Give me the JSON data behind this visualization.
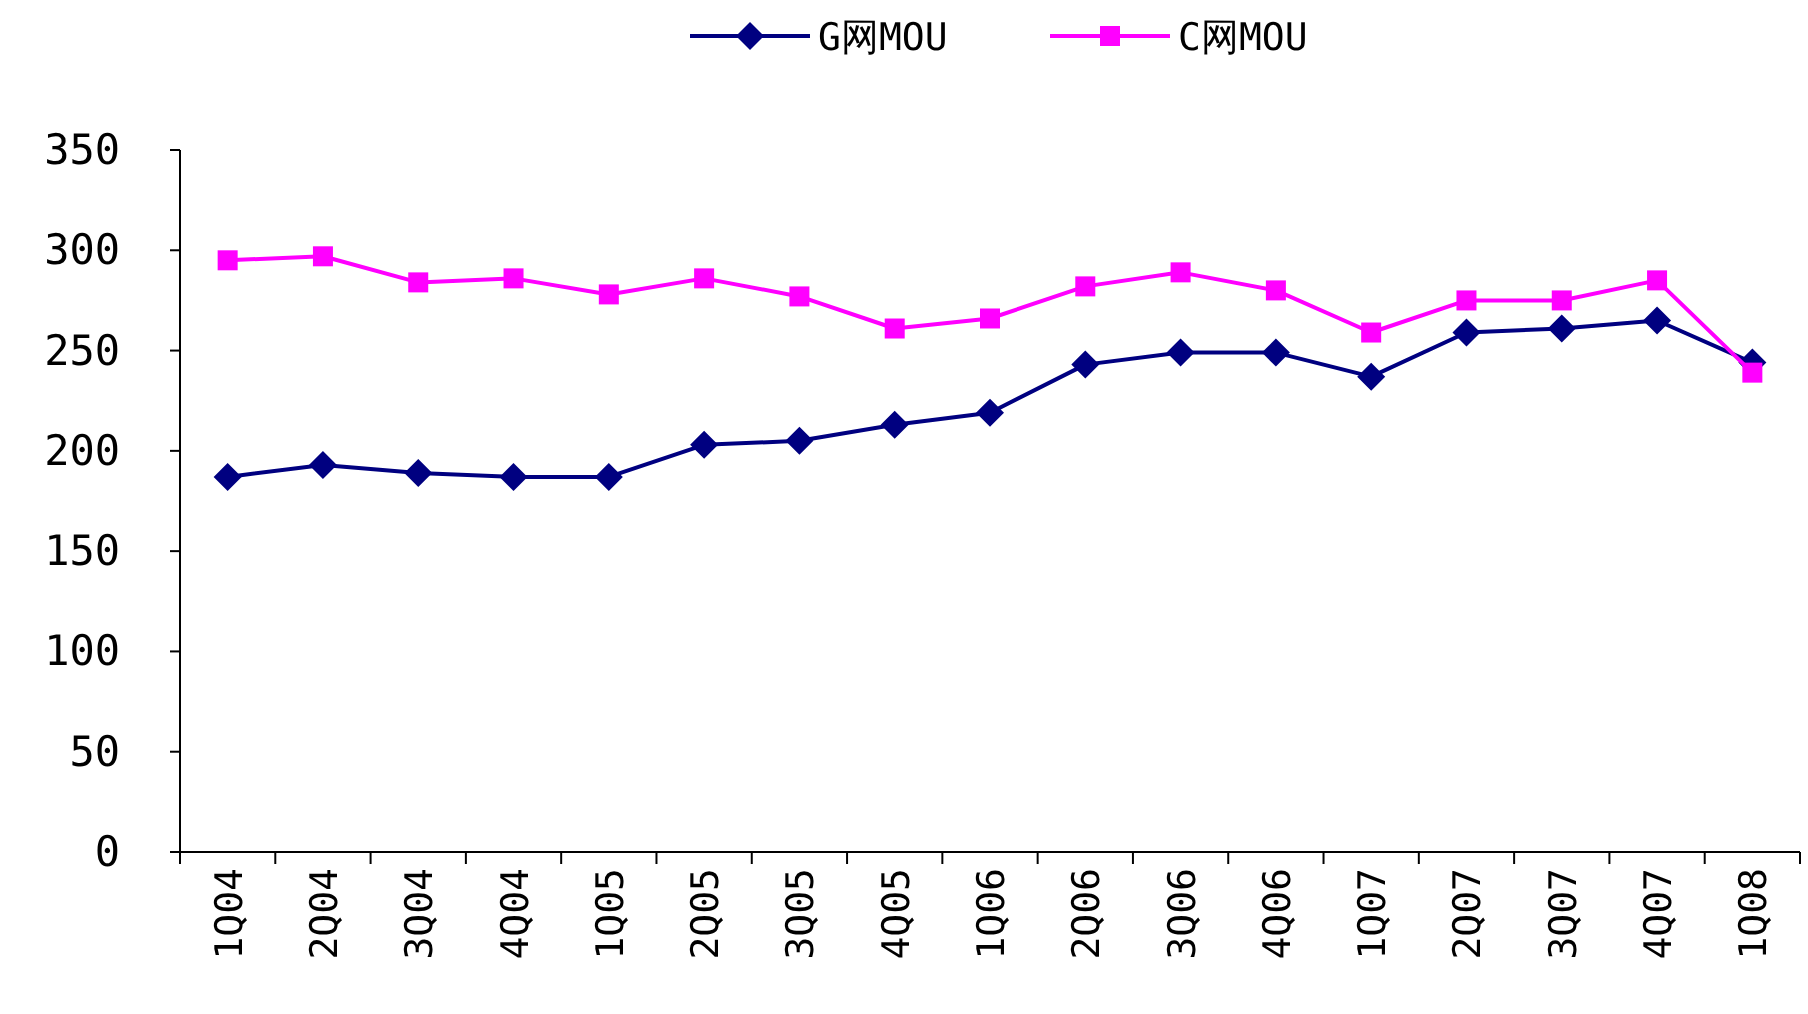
{
  "chart_data": {
    "type": "line",
    "categories": [
      "1Q04",
      "2Q04",
      "3Q04",
      "4Q04",
      "1Q05",
      "2Q05",
      "3Q05",
      "4Q05",
      "1Q06",
      "2Q06",
      "3Q06",
      "4Q06",
      "1Q07",
      "2Q07",
      "3Q07",
      "4Q07",
      "1Q08"
    ],
    "series": [
      {
        "name": "G网MOU",
        "color": "#000080",
        "marker": "diamond",
        "values": [
          187,
          193,
          189,
          187,
          187,
          203,
          205,
          213,
          219,
          243,
          249,
          249,
          237,
          259,
          261,
          265,
          244
        ]
      },
      {
        "name": "C网MOU",
        "color": "#ff00ff",
        "marker": "square",
        "values": [
          295,
          297,
          284,
          286,
          278,
          286,
          277,
          261,
          266,
          282,
          289,
          280,
          259,
          275,
          275,
          285,
          239
        ]
      }
    ],
    "ylim": [
      0,
      350
    ],
    "yticks": [
      0,
      50,
      100,
      150,
      200,
      250,
      300,
      350
    ],
    "grid": false,
    "legend": "top"
  }
}
